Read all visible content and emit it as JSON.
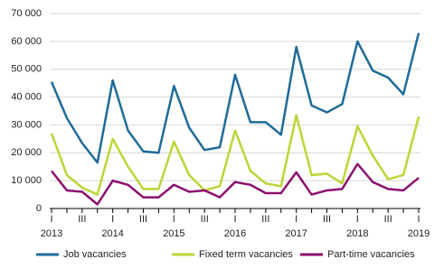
{
  "chart_data": {
    "type": "line",
    "categories": [
      "I",
      null,
      "III",
      null,
      "I",
      null,
      "III",
      null,
      "I",
      null,
      "III",
      null,
      "I",
      null,
      "III",
      null,
      "I",
      null,
      "III",
      null,
      "I",
      null,
      "III",
      null,
      "I"
    ],
    "year_labels": [
      "2013",
      null,
      null,
      null,
      "2014",
      null,
      null,
      null,
      "2015",
      null,
      null,
      null,
      "2016",
      null,
      null,
      null,
      "2017",
      null,
      null,
      null,
      "2018",
      null,
      null,
      null,
      "2019"
    ],
    "series": [
      {
        "name": "Job vacancies",
        "color": "#1f6b98",
        "values": [
          45500,
          32500,
          23500,
          16500,
          46000,
          28000,
          20500,
          20000,
          44000,
          29000,
          21000,
          22000,
          48000,
          31000,
          31000,
          26500,
          58000,
          37000,
          34500,
          37500,
          60000,
          49500,
          47000,
          41000,
          63000
        ]
      },
      {
        "name": "Fixed term vacancies",
        "color": "#bcd636",
        "values": [
          27000,
          12000,
          7500,
          5000,
          25000,
          15000,
          7000,
          7000,
          24000,
          12000,
          6500,
          8000,
          28000,
          13500,
          9000,
          8000,
          33500,
          12000,
          12500,
          9000,
          29500,
          19000,
          10500,
          12000,
          33000
        ]
      },
      {
        "name": "Part-time vacancies",
        "color": "#8c1170",
        "values": [
          13500,
          6500,
          6000,
          1500,
          10000,
          8500,
          4000,
          4000,
          8500,
          6000,
          6500,
          4000,
          9500,
          8500,
          5500,
          5500,
          13000,
          5000,
          6500,
          7000,
          16000,
          9500,
          7000,
          6500,
          11000
        ]
      }
    ],
    "ylim": [
      0,
      70000
    ],
    "yticks": [
      0,
      {
        "value": 10000,
        "label": "10 000"
      },
      {
        "value": 20000,
        "label": "20 000"
      },
      {
        "value": 30000,
        "label": "30 000"
      },
      {
        "value": 40000,
        "label": "40 000"
      },
      {
        "value": 50000,
        "label": "50 000"
      },
      {
        "value": 60000,
        "label": "60 000"
      },
      {
        "value": 70000,
        "label": "70 000"
      }
    ],
    "grid": true
  }
}
